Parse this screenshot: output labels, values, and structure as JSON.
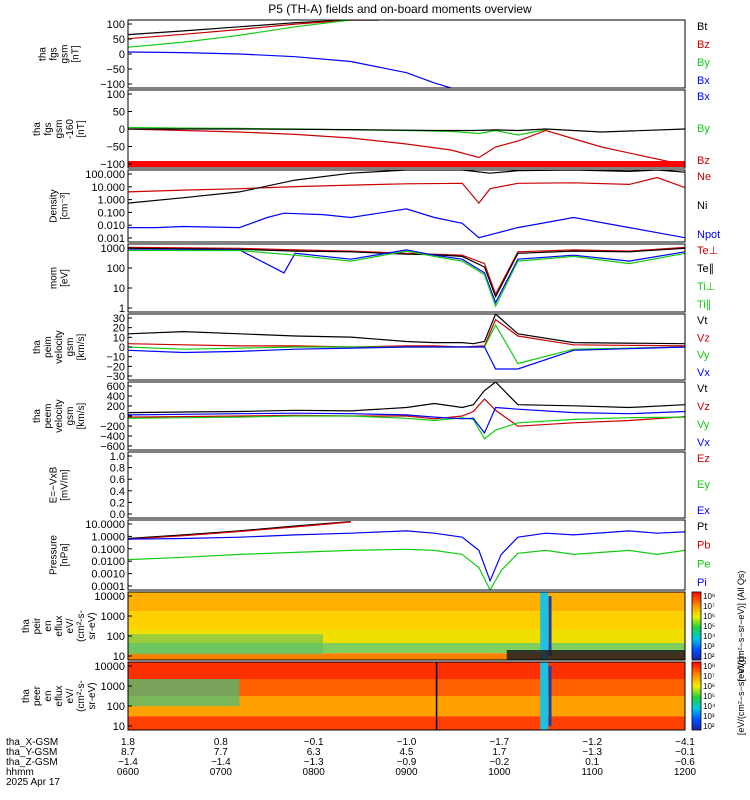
{
  "title": "P5 (TH-A) fields and on-board moments overview",
  "colors": {
    "black": "#000000",
    "red": "#cc0000",
    "green": "#11cc11",
    "blue": "#0000ff",
    "frame": "#000000"
  },
  "chart_data": [
    {
      "id": "fgs",
      "type": "line",
      "ylabel": [
        "tha",
        "fgs",
        "gsm",
        "[nT]"
      ],
      "ylim": [
        -100,
        100
      ],
      "yticks": [
        "100",
        "50",
        "0",
        "−50",
        "−100"
      ],
      "legend": [
        "Bt",
        "Bz",
        "By",
        "Bx"
      ],
      "series": [
        {
          "name": "Bt",
          "color": "black",
          "x": [
            0,
            10,
            20,
            30,
            40,
            45
          ],
          "y": [
            57,
            68,
            80,
            92,
            100,
            100
          ]
        },
        {
          "name": "Bz",
          "color": "red",
          "x": [
            0,
            10,
            20,
            30,
            40,
            45
          ],
          "y": [
            45,
            58,
            72,
            88,
            100,
            100
          ]
        },
        {
          "name": "By",
          "color": "green",
          "x": [
            0,
            10,
            20,
            30,
            40
          ],
          "y": [
            20,
            35,
            55,
            80,
            100
          ]
        },
        {
          "name": "Bx",
          "color": "blue",
          "x": [
            0,
            10,
            20,
            30,
            40,
            50,
            55,
            58
          ],
          "y": [
            6,
            4,
            0,
            -8,
            -22,
            -55,
            -85,
            -100
          ]
        }
      ]
    },
    {
      "id": "fgs_dsl",
      "type": "line",
      "ylabel": [
        "tha",
        "fgs",
        "gsm",
        "-160",
        "[nT]"
      ],
      "ylim": [
        -130,
        130
      ],
      "yticks": [
        "100",
        "50",
        "0",
        "−50",
        "−100"
      ],
      "legend": [
        "Bx",
        "By",
        "Bz"
      ],
      "series": [
        {
          "name": "By",
          "color": "green",
          "x": [
            0,
            10,
            20,
            30,
            40,
            50,
            58,
            63,
            66,
            70,
            75
          ],
          "y": [
            5,
            3,
            2,
            0,
            -3,
            -5,
            -8,
            -15,
            -5,
            -20,
            -2
          ]
        },
        {
          "name": "Bz",
          "color": "red",
          "x": [
            0,
            10,
            20,
            30,
            40,
            50,
            58,
            63,
            66,
            70,
            75,
            85,
            100
          ],
          "y": [
            0,
            -5,
            -10,
            -18,
            -30,
            -50,
            -70,
            -95,
            -60,
            -40,
            -5,
            -60,
            -120
          ]
        },
        {
          "name": "Bx",
          "color": "black",
          "x": [
            0,
            20,
            40,
            55,
            62,
            66,
            70,
            75,
            85,
            100
          ],
          "y": [
            0,
            0,
            -2,
            -5,
            -5,
            -3,
            -5,
            0,
            -10,
            0
          ]
        }
      ]
    },
    {
      "id": "density",
      "type": "line",
      "ylabel": [
        "Density",
        "[cm⁻³]"
      ],
      "ylim": [
        0.001,
        100
      ],
      "scale": "log",
      "yticks": [
        "100.000",
        "10.000",
        "1.000",
        "0.100",
        "0.010",
        "0.001"
      ],
      "legend": [
        "Ne",
        "Ni",
        "Npot"
      ],
      "series": [
        {
          "name": "Ne",
          "color": "red",
          "x": [
            0,
            10,
            20,
            30,
            40,
            50,
            60,
            63,
            65,
            70,
            80,
            90,
            95,
            100
          ],
          "y": [
            3,
            4,
            5,
            7,
            9,
            11,
            12,
            0.5,
            5,
            12,
            13,
            10,
            30,
            6
          ]
        },
        {
          "name": "Ni",
          "color": "black",
          "x": [
            0,
            10,
            20,
            30,
            40,
            50,
            60,
            65,
            70,
            80,
            90,
            95,
            100
          ],
          "y": [
            0.5,
            1.2,
            3,
            20,
            60,
            100,
            100,
            60,
            90,
            100,
            80,
            100,
            70
          ]
        },
        {
          "name": "Npot",
          "color": "blue",
          "x": [
            0,
            5,
            10,
            20,
            25,
            28,
            35,
            40,
            45,
            50,
            55,
            60,
            63,
            70,
            80,
            90,
            100
          ],
          "y": [
            0.01,
            0.01,
            0.012,
            0.01,
            0.05,
            0.1,
            0.08,
            0.05,
            0.1,
            0.2,
            0.05,
            0.02,
            0.002,
            0.01,
            0.05,
            0.01,
            0.002
          ]
        }
      ]
    },
    {
      "id": "temp",
      "type": "line",
      "ylabel": [
        "mom",
        "[eV]"
      ],
      "ylim": [
        1,
        3000
      ],
      "scale": "log",
      "yticks": [
        "1000",
        "100",
        "10",
        "1"
      ],
      "legend": [
        "Te⊥",
        "Te∥",
        "Ti⊥",
        "Ti∥"
      ],
      "series": [
        {
          "name": "Te⊥",
          "color": "red",
          "x": [
            0,
            20,
            30,
            40,
            50,
            55,
            60,
            64,
            66,
            70,
            80,
            90,
            100
          ],
          "y": [
            2000,
            1800,
            1500,
            1300,
            1000,
            900,
            800,
            300,
            8,
            1200,
            1500,
            1300,
            2000
          ]
        },
        {
          "name": "Te∥",
          "color": "black",
          "x": [
            0,
            20,
            30,
            40,
            50,
            55,
            60,
            64,
            66,
            70,
            80,
            90,
            100
          ],
          "y": [
            1800,
            1600,
            1300,
            1200,
            900,
            850,
            700,
            200,
            6,
            1000,
            1300,
            1200,
            1800
          ]
        },
        {
          "name": "Ti⊥",
          "color": "blue",
          "x": [
            0,
            20,
            28,
            30,
            40,
            50,
            55,
            60,
            64,
            66,
            70,
            80,
            90,
            100
          ],
          "y": [
            1500,
            1500,
            100,
            1000,
            500,
            1500,
            800,
            500,
            100,
            3,
            500,
            800,
            400,
            1200
          ]
        },
        {
          "name": "Ti∥",
          "color": "green",
          "x": [
            0,
            20,
            30,
            40,
            50,
            55,
            60,
            64,
            66,
            70,
            80,
            90,
            100
          ],
          "y": [
            1400,
            1400,
            800,
            400,
            1300,
            700,
            400,
            80,
            2,
            400,
            700,
            300,
            1000
          ]
        }
      ]
    },
    {
      "id": "vi",
      "type": "line",
      "ylabel": [
        "tha",
        "peim",
        "velocity",
        "gsm",
        "[km/s]"
      ],
      "ylim": [
        -30,
        30
      ],
      "yticks": [
        "30",
        "20",
        "10",
        "0",
        "−10",
        "−20",
        "−30"
      ],
      "legend": [
        "Vt",
        "Vz",
        "Vy",
        "Vx"
      ],
      "series": [
        {
          "name": "Vt",
          "color": "black",
          "x": [
            0,
            10,
            20,
            30,
            40,
            50,
            55,
            60,
            62,
            64,
            66,
            70,
            80,
            100
          ],
          "y": [
            12,
            14,
            12,
            10,
            9,
            5,
            4,
            4,
            3,
            5,
            30,
            12,
            4,
            3
          ]
        },
        {
          "name": "Vz",
          "color": "red",
          "x": [
            0,
            10,
            20,
            30,
            40,
            50,
            55,
            60,
            64,
            66,
            70,
            80,
            100
          ],
          "y": [
            3,
            2,
            1,
            1,
            0,
            1,
            1,
            0,
            1,
            25,
            10,
            2,
            1
          ]
        },
        {
          "name": "Vy",
          "color": "green",
          "x": [
            0,
            10,
            20,
            30,
            40,
            50,
            55,
            60,
            64,
            66,
            70,
            80,
            100
          ],
          "y": [
            0,
            -2,
            -1,
            0,
            0,
            0,
            0,
            0,
            0,
            20,
            -15,
            -2,
            0
          ]
        },
        {
          "name": "Vx",
          "color": "blue",
          "x": [
            0,
            10,
            20,
            30,
            40,
            50,
            55,
            60,
            64,
            66,
            70,
            80,
            100
          ],
          "y": [
            -3,
            -5,
            -4,
            -2,
            -1,
            0,
            0,
            0,
            0,
            -20,
            -20,
            -3,
            0
          ]
        }
      ]
    },
    {
      "id": "ve",
      "type": "line",
      "ylabel": [
        "tha",
        "peem",
        "velocity",
        "gsm",
        "[km/s]"
      ],
      "ylim": [
        -600,
        600
      ],
      "yticks": [
        "600",
        "400",
        "200",
        "0",
        "−200",
        "−400",
        "−600"
      ],
      "legend": [
        "Vt",
        "Vz",
        "Vy",
        "Vx"
      ],
      "series": [
        {
          "name": "Vt",
          "color": "black",
          "x": [
            0,
            10,
            20,
            30,
            40,
            50,
            55,
            60,
            62,
            64,
            66,
            70,
            80,
            90,
            100
          ],
          "y": [
            60,
            70,
            80,
            100,
            90,
            150,
            220,
            150,
            200,
            450,
            600,
            200,
            180,
            150,
            200
          ]
        },
        {
          "name": "Vz",
          "color": "red",
          "x": [
            0,
            10,
            20,
            30,
            40,
            50,
            55,
            60,
            62,
            64,
            66,
            70,
            80,
            90,
            100
          ],
          "y": [
            -20,
            -10,
            0,
            10,
            0,
            0,
            -50,
            0,
            80,
            300,
            100,
            -180,
            -120,
            -80,
            -10
          ]
        },
        {
          "name": "Vy",
          "color": "green",
          "x": [
            0,
            10,
            20,
            30,
            40,
            50,
            55,
            60,
            62,
            64,
            66,
            70,
            80,
            90,
            100
          ],
          "y": [
            -40,
            -30,
            -20,
            0,
            0,
            -40,
            -80,
            -30,
            -60,
            -400,
            -250,
            -120,
            -60,
            -30,
            -20
          ]
        },
        {
          "name": "Vx",
          "color": "blue",
          "x": [
            0,
            10,
            20,
            30,
            40,
            50,
            55,
            60,
            62,
            64,
            66,
            70,
            80,
            90,
            100
          ],
          "y": [
            20,
            30,
            40,
            50,
            40,
            20,
            -20,
            -50,
            -40,
            -300,
            150,
            120,
            60,
            40,
            80
          ]
        }
      ]
    },
    {
      "id": "efield",
      "type": "line",
      "ylabel": [
        "E=−VxB",
        "[mV/m]"
      ],
      "ylim": [
        0,
        1
      ],
      "yticks": [
        "1.0",
        "0.8",
        "0.6",
        "0.4",
        "0.2",
        "0.0"
      ],
      "legend": [
        "Ez",
        "Ey",
        "Ex"
      ],
      "series": []
    },
    {
      "id": "pressure",
      "type": "line",
      "ylabel": [
        "Pressure",
        "[nPa]"
      ],
      "ylim": [
        0.0001,
        20
      ],
      "scale": "log",
      "yticks": [
        "10.0000",
        "1.0000",
        "0.1000",
        "0.0100",
        "0.0010",
        "0.0001"
      ],
      "legend": [
        "Pt",
        "Pb",
        "Pe",
        "Pi"
      ],
      "series": [
        {
          "name": "Pt",
          "color": "black",
          "x": [
            0,
            10,
            20,
            30,
            40
          ],
          "y": [
            0.8,
            1.5,
            3,
            7,
            15
          ]
        },
        {
          "name": "Pb",
          "color": "red",
          "x": [
            0,
            10,
            20,
            30,
            40
          ],
          "y": [
            0.7,
            1.3,
            2.7,
            6,
            14
          ]
        },
        {
          "name": "Pe",
          "color": "green",
          "x": [
            0,
            10,
            20,
            30,
            40,
            50,
            55,
            60,
            63,
            65,
            67,
            70,
            75,
            80,
            90,
            95,
            100
          ],
          "y": [
            0.02,
            0.03,
            0.05,
            0.07,
            0.1,
            0.12,
            0.1,
            0.05,
            0.005,
            0.0001,
            0.003,
            0.06,
            0.1,
            0.05,
            0.1,
            0.05,
            0.1
          ]
        },
        {
          "name": "Pi",
          "color": "blue",
          "x": [
            0,
            10,
            20,
            30,
            40,
            50,
            55,
            60,
            63,
            65,
            67,
            70,
            75,
            80,
            90,
            95,
            100
          ],
          "y": [
            0.7,
            0.8,
            1,
            1.5,
            2,
            3,
            2,
            1,
            0.1,
            0.0005,
            0.05,
            1,
            2,
            1.5,
            3,
            2,
            2.5
          ]
        }
      ]
    },
    {
      "id": "ion_spec",
      "type": "heatmap",
      "ylabel": [
        "tha",
        "peir",
        "en",
        "eflux",
        "eV/",
        "(cm²-s-",
        "sr-eV)"
      ],
      "ylim": [
        5,
        30000
      ],
      "scale": "log",
      "yticks": [
        "10000",
        "1000",
        "100",
        "10"
      ],
      "colorbar_ticks": [
        "10⁸",
        "10⁷",
        "10⁶",
        "10⁵",
        "10⁴",
        "10³",
        "10²"
      ],
      "colorbar_label": "[eV/(cm²−s−sr−eV)] (All Qs)"
    },
    {
      "id": "elec_spec",
      "type": "heatmap",
      "ylabel": [
        "tha",
        "peer",
        "en",
        "eflux",
        "eV/",
        "(cm²-s-",
        "sr-eV)"
      ],
      "ylim": [
        5,
        30000
      ],
      "scale": "log",
      "yticks": [
        "10000",
        "1000",
        "100",
        "10"
      ],
      "colorbar_ticks": [
        "10⁸",
        "10⁷",
        "10⁶",
        "10⁵",
        "10⁴",
        "10³",
        "10²"
      ],
      "colorbar_label": "[eV/(cm²−s−sr−eV)]"
    }
  ],
  "x_axis": {
    "row_labels": [
      "tha_X-GSM",
      "tha_Y-GSM",
      "tha_Z-GSM",
      "hhmm",
      "2025 Apr 17"
    ],
    "ticks": [
      {
        "x": 0,
        "values": [
          "1.8",
          "8.7",
          "−1.4",
          "0600"
        ]
      },
      {
        "x": 16.67,
        "values": [
          "0.8",
          "7.7",
          "−1.4",
          "0700"
        ]
      },
      {
        "x": 33.33,
        "values": [
          "−0.1",
          "6.3",
          "−1.3",
          "0800"
        ]
      },
      {
        "x": 50,
        "values": [
          "−1.0",
          "4.5",
          "−0.9",
          "0900"
        ]
      },
      {
        "x": 66.67,
        "values": [
          "−1.7",
          "1.7",
          "−0.2",
          "1000"
        ]
      },
      {
        "x": 83.33,
        "values": [
          "−1.2",
          "−1.3",
          "0.1",
          "1100"
        ]
      },
      {
        "x": 100,
        "values": [
          "−4.1",
          "−0.1",
          "−0.6",
          "1200"
        ]
      }
    ]
  }
}
